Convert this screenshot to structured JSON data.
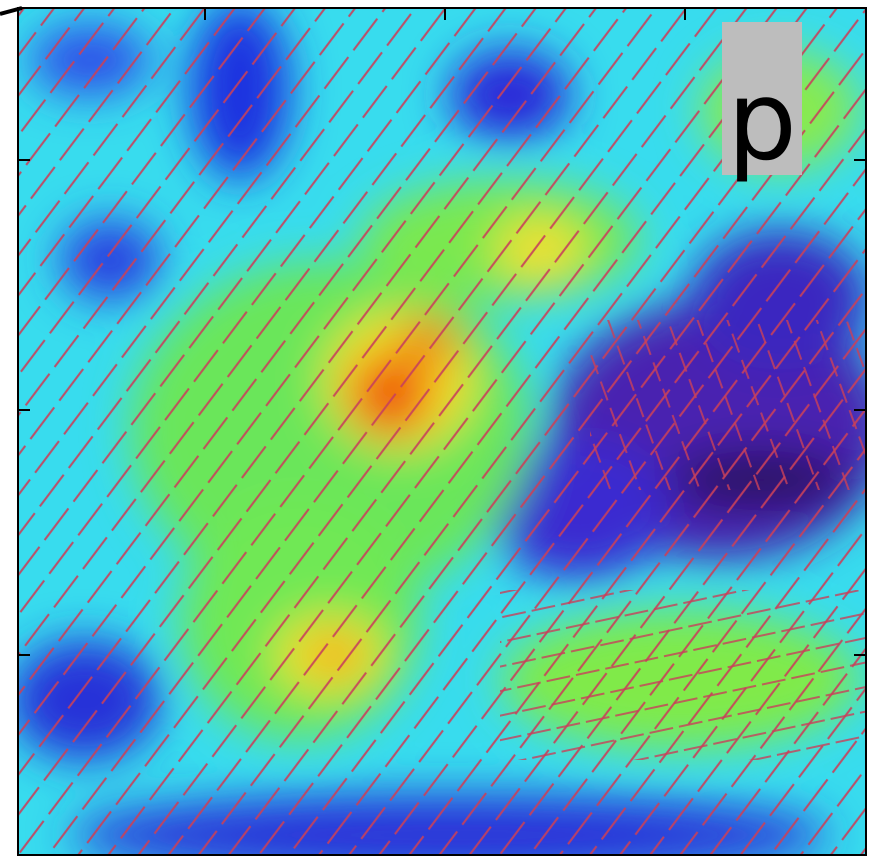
{
  "panel_label": "p"
}
